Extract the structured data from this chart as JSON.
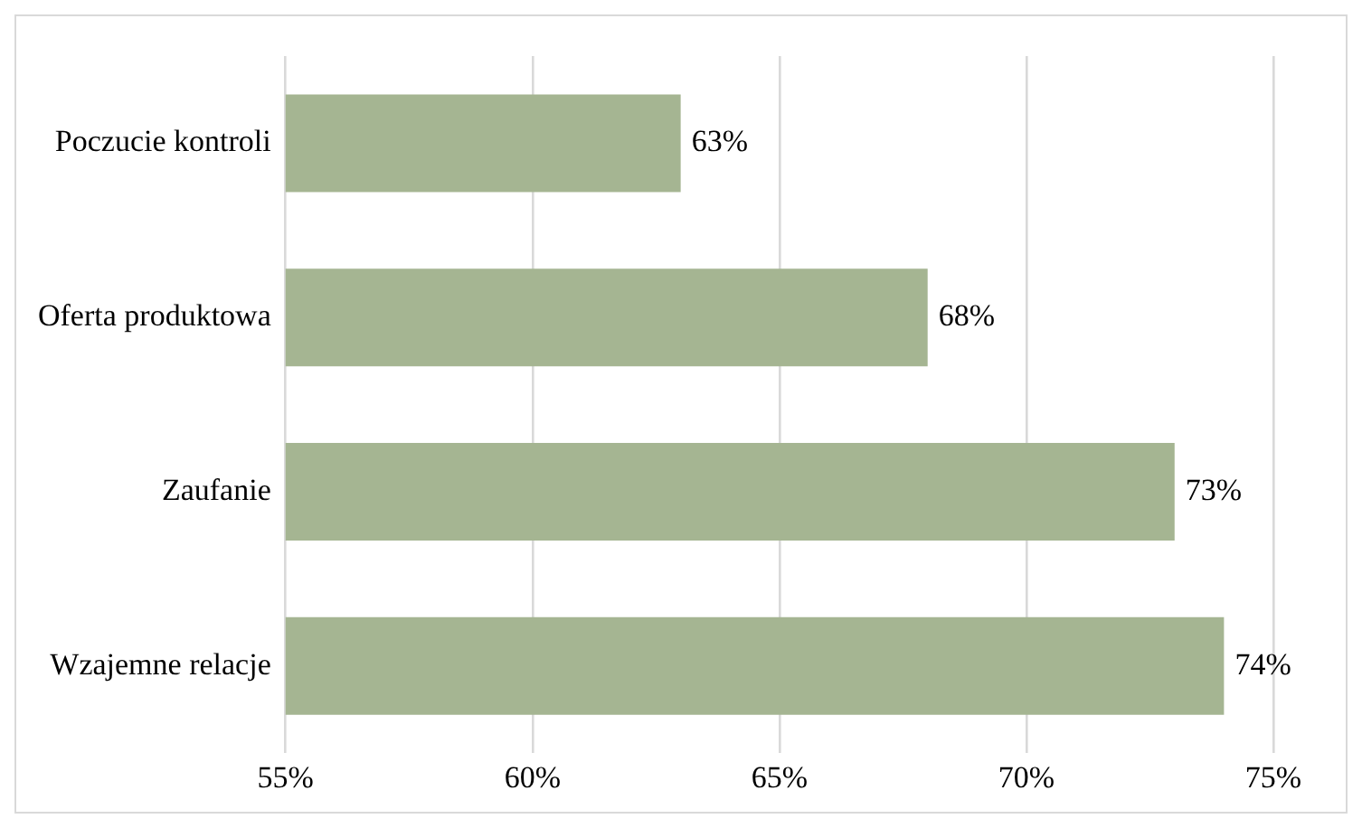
{
  "chart_data": {
    "type": "bar",
    "orientation": "horizontal",
    "categories": [
      "Poczucie kontroli",
      "Oferta produktowa",
      "Zaufanie",
      "Wzajemne relacje"
    ],
    "values": [
      63,
      68,
      73,
      74
    ],
    "color": "#a5b592",
    "value_labels": [
      "63%",
      "68%",
      "73%",
      "74%"
    ],
    "xlim": [
      55,
      75
    ],
    "xticks": [
      {
        "value": 55,
        "label": "55%"
      },
      {
        "value": 60,
        "label": "60%"
      },
      {
        "value": 65,
        "label": "65%"
      },
      {
        "value": 70,
        "label": "70%"
      },
      {
        "value": 75,
        "label": "75%"
      }
    ],
    "grid": "x",
    "legend": false
  }
}
